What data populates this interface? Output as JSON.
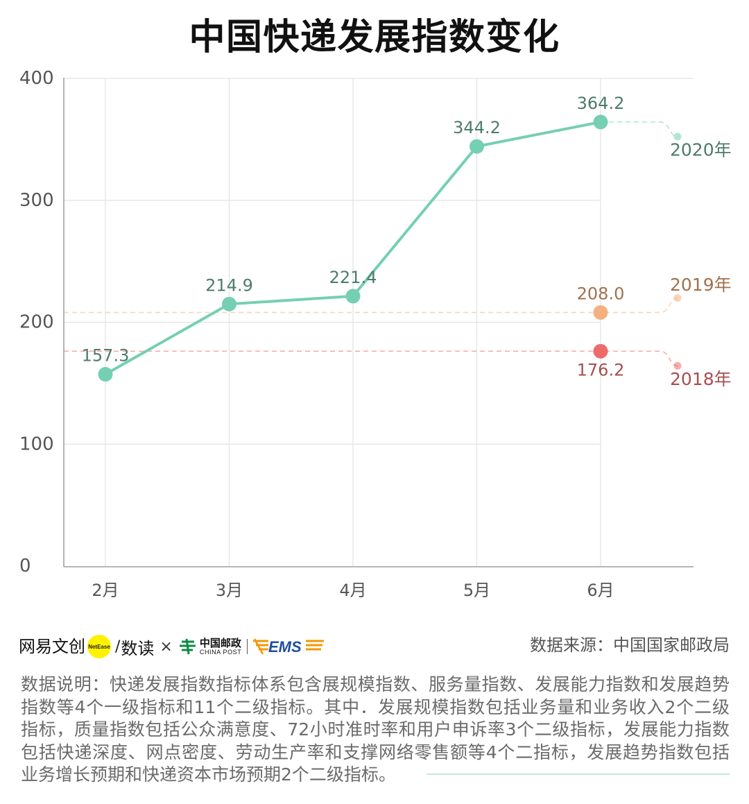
{
  "chart_data": {
    "type": "line",
    "title": "中国快递发展指数变化",
    "categories": [
      "2月",
      "3月",
      "4月",
      "5月",
      "6月"
    ],
    "ylim": [
      0,
      400
    ],
    "yticks": [
      0,
      100,
      200,
      300,
      400
    ],
    "grid": true,
    "series": [
      {
        "name": "2020年",
        "values": [
          157.3,
          214.9,
          221.4,
          344.2,
          364.2
        ],
        "color": "#75cfb2",
        "label_color": "#4d7b6c",
        "label_position": "above"
      },
      {
        "name": "2019年",
        "values": [
          null,
          null,
          null,
          null,
          208.0
        ],
        "color": "#f4b17f",
        "label_color": "#a0714e",
        "label_position": "above"
      },
      {
        "name": "2018年",
        "values": [
          null,
          null,
          null,
          null,
          176.2
        ],
        "color": "#ee6b6b",
        "label_color": "#a84e4e",
        "label_position": "below"
      }
    ]
  },
  "footer": {
    "brand": {
      "netease_wenchuang": "网易文创",
      "badge": "NetEase",
      "slash": "/",
      "shudu": "数读",
      "times": "×",
      "china_post_cn": "中国邮政",
      "china_post_en": "CHINA POST",
      "ems": "EMS"
    },
    "source": "数据来源：中国国家邮政局"
  },
  "note": {
    "lines": [
      "数据说明：快递发展指数指标体系包含展规模指数、服务量指数、发展能力指数和发展趋势",
      "指数等4个一级指标和11个二级指标。其中．发展规模指数包括业务量和业务收入2个二级",
      "指标，质量指数包括公众满意度、72小时准时率和用户申诉率3个二级指标，发展能力指数",
      "包括快递深度、网点密度、劳动生产率和支撑网络零售额等4个二指标，发展趋势指数包括",
      "业务增长预期和快递资本市场预期2个二级指标。"
    ]
  }
}
